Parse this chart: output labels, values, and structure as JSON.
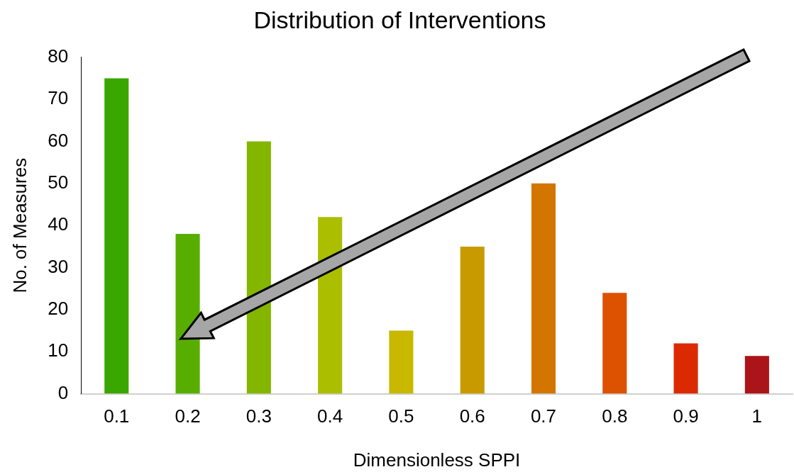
{
  "chart_data": {
    "type": "bar",
    "title": "Distribution of Interventions",
    "xlabel": "Dimensionless SPPI",
    "ylabel": "No. of Measures",
    "categories": [
      "0.1",
      "0.2",
      "0.3",
      "0.4",
      "0.5",
      "0.6",
      "0.7",
      "0.8",
      "0.9",
      "1"
    ],
    "values": [
      75,
      38,
      60,
      42,
      15,
      35,
      50,
      24,
      12,
      9
    ],
    "colors": [
      "#3aa600",
      "#58ae00",
      "#84b600",
      "#abbe00",
      "#c8b800",
      "#c99a00",
      "#d27600",
      "#dc5200",
      "#dc2a00",
      "#ab1418"
    ],
    "ylim": [
      0,
      80
    ],
    "yticks": [
      0,
      10,
      20,
      30,
      40,
      50,
      60,
      70,
      80
    ],
    "grid": false,
    "legend": false
  }
}
